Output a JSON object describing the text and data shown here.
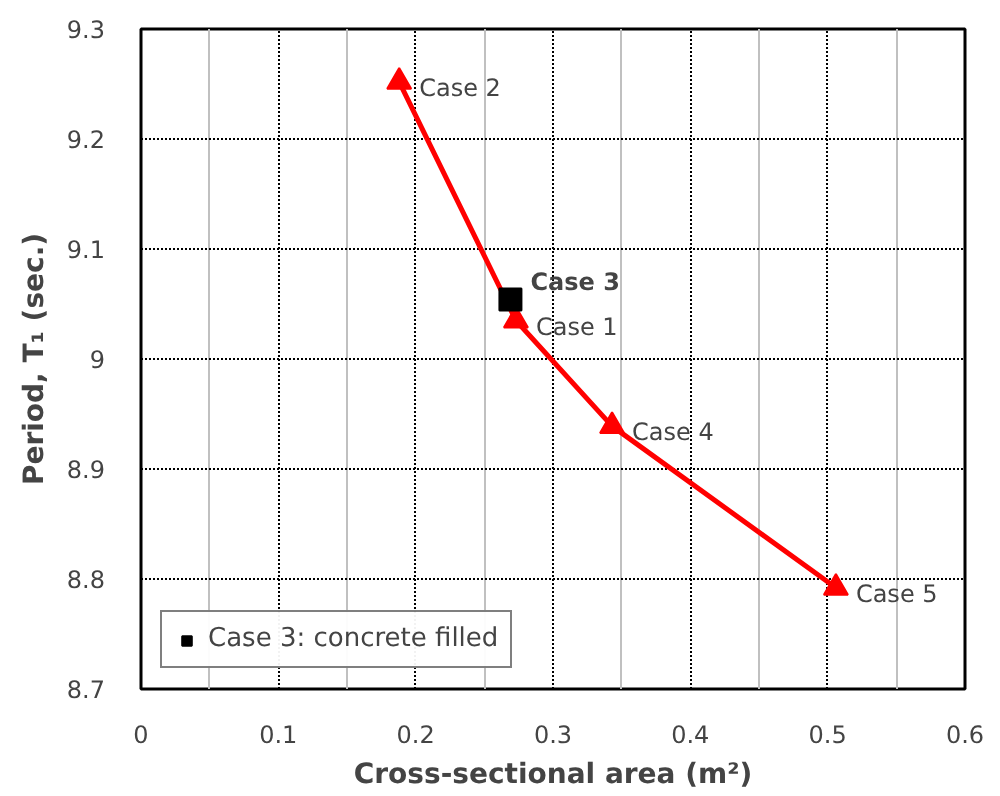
{
  "chart_data": {
    "type": "line",
    "xlabel": "Cross-sectional area (m²)",
    "ylabel": "Period, T₁ (sec.)",
    "xlim": [
      0,
      0.6
    ],
    "ylim": [
      8.7,
      9.3
    ],
    "xticks": [
      0,
      {
        "value": 0.05,
        "label": null
      },
      0.1,
      {
        "value": 0.15,
        "label": null
      },
      0.2,
      {
        "value": 0.25,
        "label": null
      },
      0.3,
      {
        "value": 0.35,
        "label": null
      },
      0.4,
      {
        "value": 0.45,
        "label": null
      },
      0.5,
      {
        "value": 0.55,
        "label": null
      },
      0.6
    ],
    "yticks": [
      8.7,
      8.8,
      8.9,
      9,
      9.1,
      9.2,
      9.3
    ],
    "grid": true,
    "legend": "bottom left",
    "line_style": "solid",
    "series": [
      {
        "color": "#ff0000",
        "marker": "triangle",
        "x": [
          0.188,
          0.273,
          0.343,
          0.506
        ],
        "values": [
          9.252,
          9.035,
          8.939,
          8.792
        ]
      },
      {
        "type": "scatter",
        "name": "Case 3: concrete filled",
        "color": "#000000",
        "marker": "square",
        "x": [
          0.269
        ],
        "values": [
          9.054
        ]
      }
    ],
    "annotations": [
      {
        "text": "Case 2",
        "x": 0.188,
        "y": 9.252
      },
      {
        "text": "Case 3",
        "x": 0.269,
        "y": 9.054
      },
      {
        "text": "Case 1",
        "x": 0.273,
        "y": 9.035
      },
      {
        "text": "Case 4",
        "x": 0.343,
        "y": 8.939
      },
      {
        "text": "Case 5",
        "x": 0.506,
        "y": 8.792
      }
    ]
  }
}
